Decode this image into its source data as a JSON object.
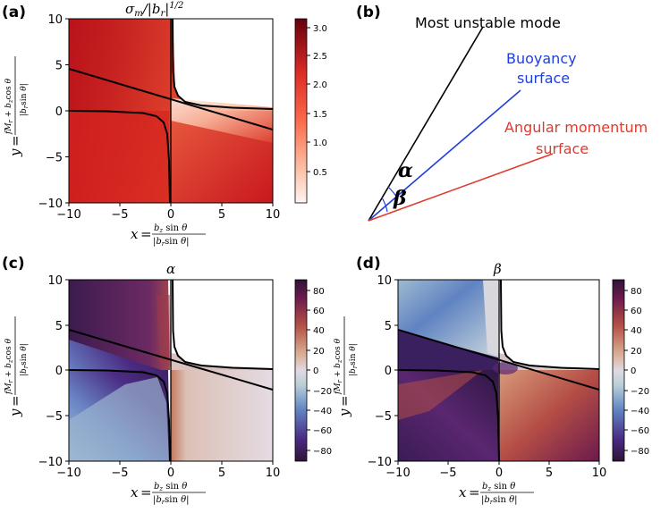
{
  "panels": {
    "a": {
      "label": "(a)",
      "title": "σm/|br|1/2"
    },
    "b": {
      "label": "(b)"
    },
    "c": {
      "label": "(c)",
      "title": "α"
    },
    "d": {
      "label": "(d)",
      "title": "β"
    }
  },
  "axis": {
    "x_ticks": [
      "−10",
      "−5",
      "0",
      "5",
      "10"
    ],
    "y_ticks": [
      "10",
      "5",
      "0",
      "−5",
      "−10"
    ],
    "x_label": "x = bz sin θ / |br sin θ|",
    "y_label": "y = (fMr + bz cos θ) / |br sin θ|"
  },
  "colorbars": {
    "a": {
      "ticks": [
        "3.0",
        "2.5",
        "2.0",
        "1.5",
        "1.0",
        "0.5"
      ],
      "colormap": "Reds"
    },
    "c": {
      "ticks": [
        "80",
        "60",
        "40",
        "20",
        "0",
        "−20",
        "−40",
        "−60",
        "−80"
      ],
      "colormap": "twilight_shifted"
    },
    "d": {
      "ticks": [
        "80",
        "60",
        "40",
        "20",
        "0",
        "−20",
        "−40",
        "−60",
        "−80"
      ],
      "colormap": "twilight_shifted"
    }
  },
  "diagram": {
    "mode_label": "Most unstable mode",
    "buoyancy_label_1": "Buoyancy",
    "buoyancy_label_2": "surface",
    "angmom_label_1": "Angular momentum",
    "angmom_label_2": "surface",
    "alpha": "α",
    "beta": "β",
    "colors": {
      "mode": "#000000",
      "buoyancy": "#1f3fdc",
      "angmom": "#e03a2c"
    }
  },
  "chart_data": [
    {
      "type": "heatmap",
      "panel": "a",
      "title": "σm/|br|^1/2",
      "xlim": [
        -10,
        10
      ],
      "ylim": [
        -10,
        10
      ],
      "clim": [
        0,
        3.1
      ],
      "colormap": "Reds",
      "curves": [
        "x·y = 1 hyperbola (two branches)",
        "line y = 1.2 − 0.32 x"
      ]
    },
    {
      "type": "heatmap",
      "panel": "c",
      "title": "α",
      "xlim": [
        -10,
        10
      ],
      "ylim": [
        -10,
        10
      ],
      "clim": [
        -90,
        90
      ],
      "colormap": "twilight_shifted"
    },
    {
      "type": "heatmap",
      "panel": "d",
      "title": "β",
      "xlim": [
        -10,
        10
      ],
      "ylim": [
        -10,
        10
      ],
      "clim": [
        -90,
        90
      ],
      "colormap": "twilight_shifted"
    }
  ]
}
